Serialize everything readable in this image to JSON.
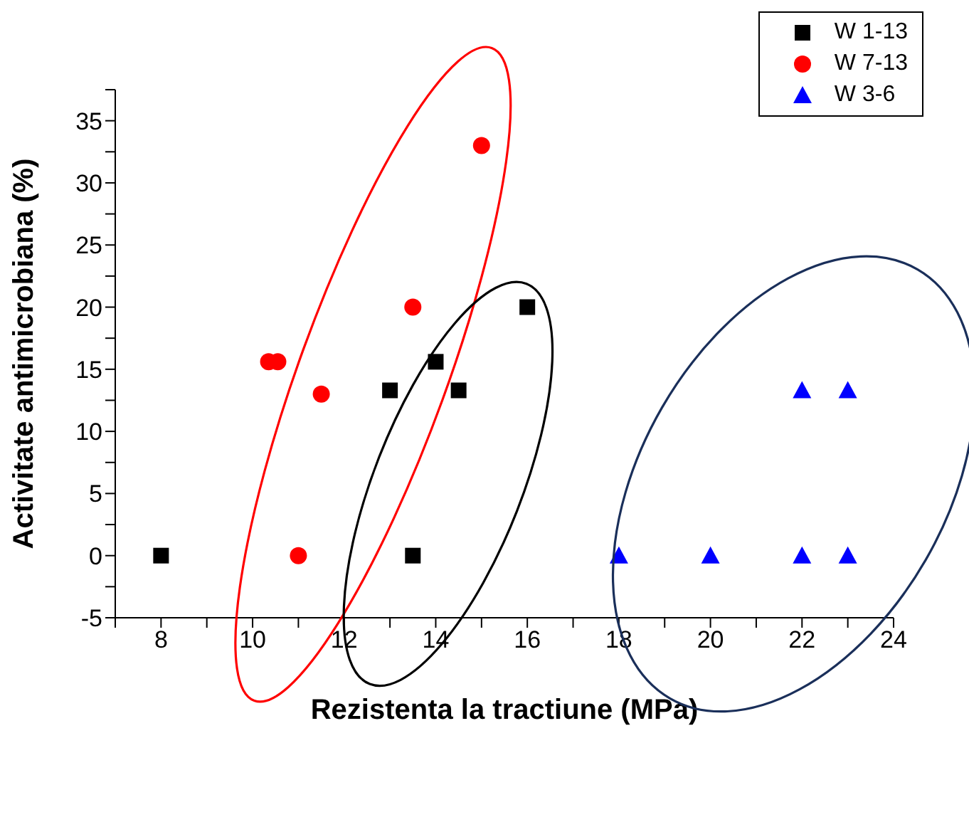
{
  "chart_data": {
    "type": "scatter",
    "xlabel": "Rezistenta la tractiune (MPa)",
    "ylabel": "Activitate antimicrobiana (%)",
    "xlim": [
      7,
      24
    ],
    "ylim": [
      -5,
      37.5
    ],
    "xticks": [
      {
        "value": 7,
        "label": null
      },
      8,
      {
        "value": 9,
        "label": null
      },
      10,
      {
        "value": 11,
        "label": null
      },
      12,
      {
        "value": 13,
        "label": null
      },
      14,
      {
        "value": 15,
        "label": null
      },
      16,
      {
        "value": 17,
        "label": null
      },
      18,
      {
        "value": 19,
        "label": null
      },
      20,
      {
        "value": 21,
        "label": null
      },
      22,
      {
        "value": 23,
        "label": null
      },
      24
    ],
    "yticks": [
      -5,
      {
        "value": -2.5,
        "label": null
      },
      0,
      {
        "value": 2.5,
        "label": null
      },
      5,
      {
        "value": 7.5,
        "label": null
      },
      10,
      {
        "value": 12.5,
        "label": null
      },
      15,
      {
        "value": 17.5,
        "label": null
      },
      20,
      {
        "value": 22.5,
        "label": null
      },
      25,
      {
        "value": 27.5,
        "label": null
      },
      30,
      {
        "value": 32.5,
        "label": null
      },
      35,
      {
        "value": 37.5,
        "label": null
      }
    ],
    "legend": "top right",
    "grid": false,
    "series": [
      {
        "name": "W 1-13",
        "color": "#000000",
        "marker": "square",
        "x": [
          8,
          13,
          14,
          14.5,
          16,
          13.5
        ],
        "values": [
          0,
          13.3,
          15.6,
          13.3,
          20,
          0
        ]
      },
      {
        "name": "W 7-13",
        "color": "#ff0000",
        "marker": "circle",
        "x": [
          10.35,
          10.55,
          11.5,
          11,
          13.5,
          15
        ],
        "values": [
          15.6,
          15.6,
          13,
          0,
          20,
          33
        ]
      },
      {
        "name": "W 3-6",
        "color": "#0000ff",
        "marker": "triangle",
        "x": [
          18,
          20,
          22,
          23,
          22,
          23
        ],
        "values": [
          0,
          0,
          0,
          0,
          13.3,
          13.3
        ]
      }
    ]
  }
}
